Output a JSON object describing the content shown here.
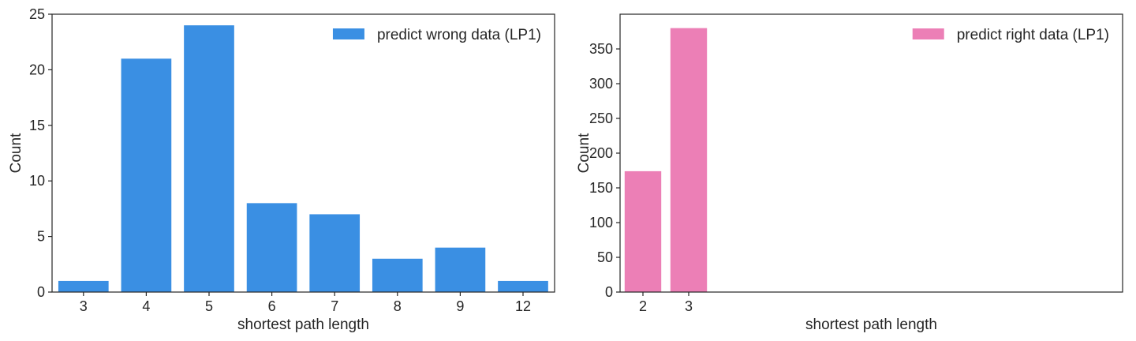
{
  "chart_data": [
    {
      "type": "bar",
      "categories": [
        "3",
        "4",
        "5",
        "6",
        "7",
        "8",
        "9",
        "12"
      ],
      "series": [
        {
          "name": "predict wrong data (LP1)",
          "values": [
            1,
            21,
            24,
            8,
            7,
            3,
            4,
            1
          ],
          "color": "#3a8fe3"
        }
      ],
      "xlabel": "shortest path length",
      "ylabel": "Count",
      "ylim": [
        0,
        25
      ],
      "yticks": [
        0,
        5,
        10,
        15,
        20,
        25
      ],
      "grid": false,
      "legend_position": "top-right"
    },
    {
      "type": "bar",
      "categories": [
        "2",
        "3"
      ],
      "series": [
        {
          "name": "predict right data (LP1)",
          "values": [
            174,
            380
          ],
          "color": "#ec7fb6"
        }
      ],
      "xlabel": "shortest path length",
      "ylabel": "Count",
      "ylim": [
        0,
        400
      ],
      "yticks": [
        0,
        50,
        100,
        150,
        200,
        250,
        300,
        350
      ],
      "grid": false,
      "legend_position": "top-right"
    }
  ]
}
